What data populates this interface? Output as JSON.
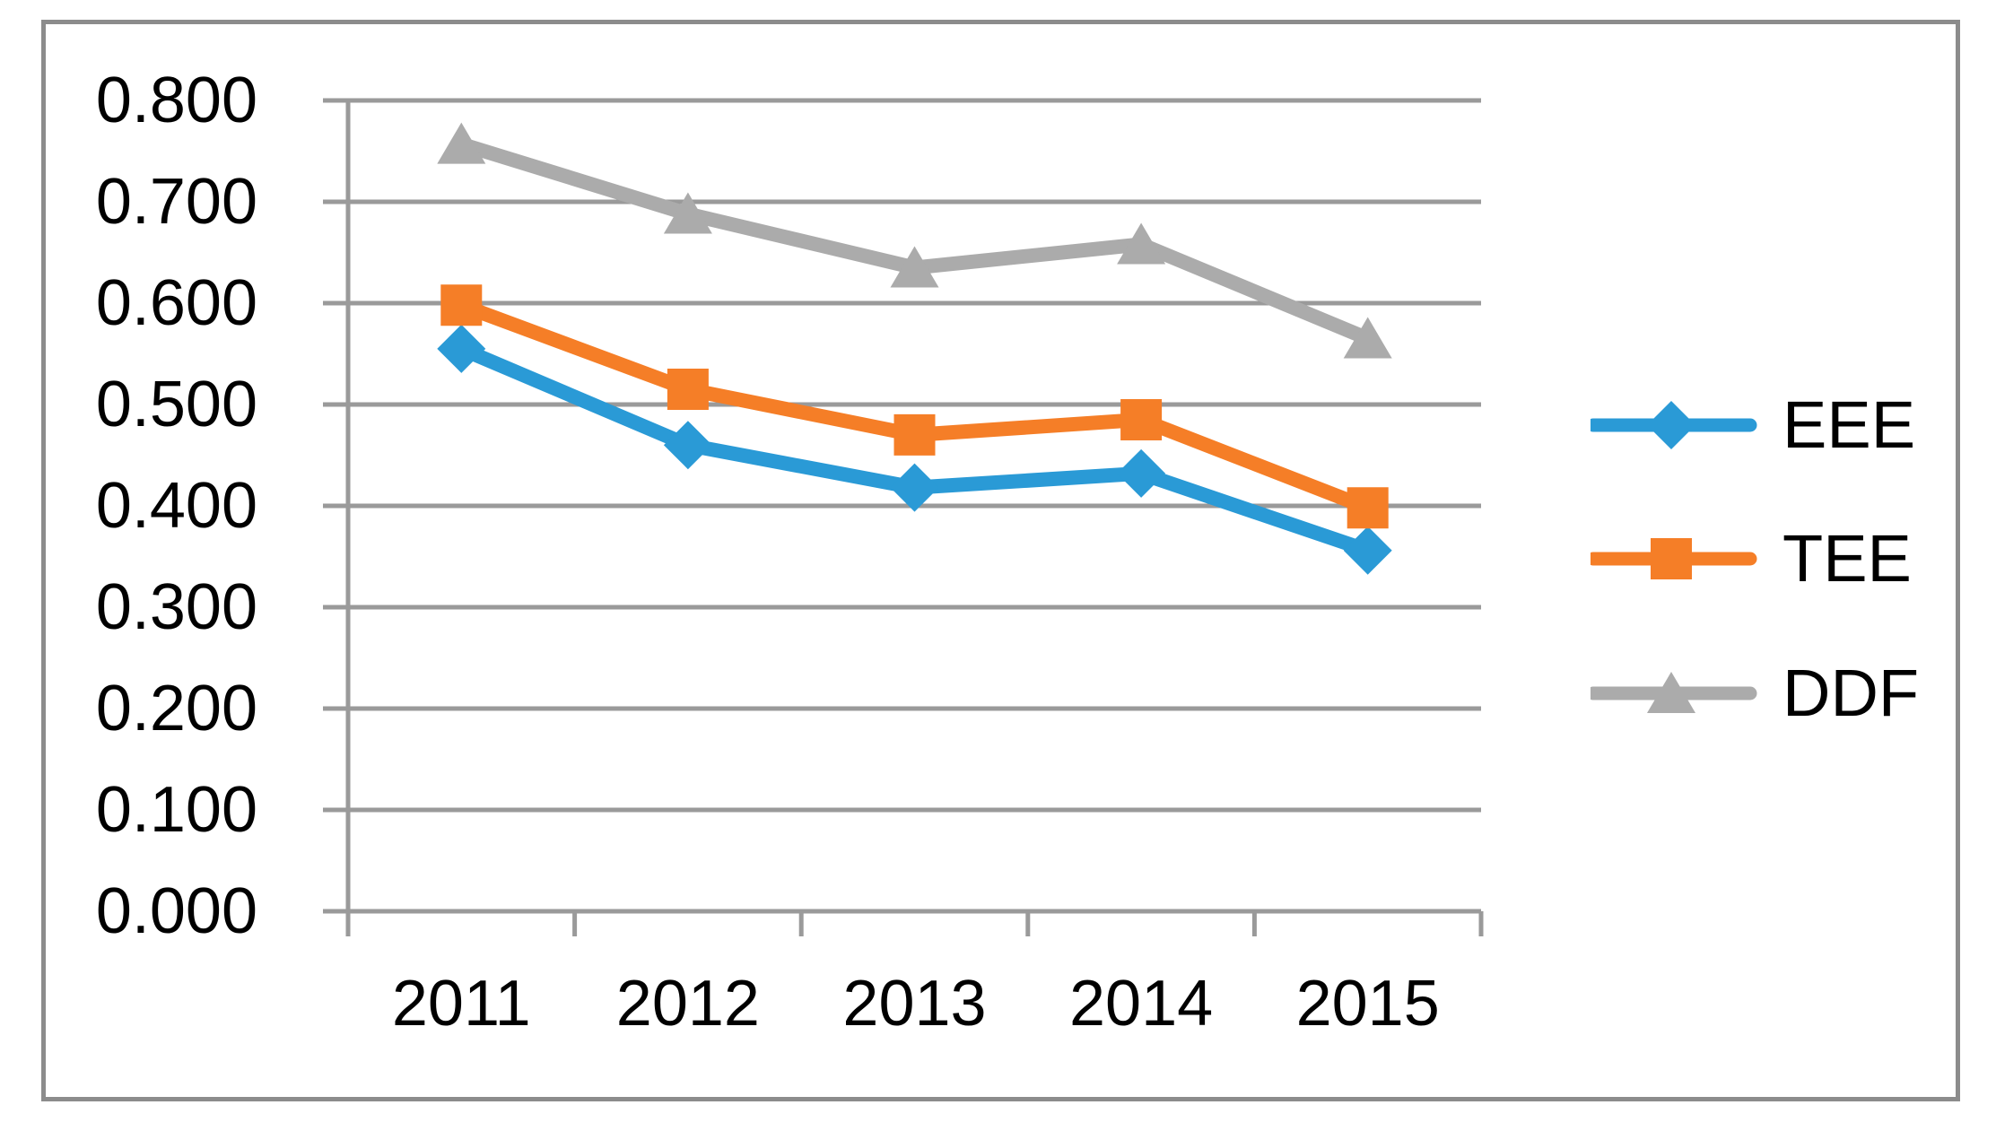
{
  "chart_data": {
    "type": "line",
    "title": "",
    "categories": [
      "2011",
      "2012",
      "2013",
      "2014",
      "2015"
    ],
    "series": [
      {
        "name": "EEE",
        "color": "#2A9AD6",
        "marker": "diamond",
        "values": [
          0.555,
          0.46,
          0.418,
          0.432,
          0.356
        ]
      },
      {
        "name": "TEE",
        "color": "#F57E27",
        "marker": "square",
        "values": [
          0.598,
          0.515,
          0.47,
          0.485,
          0.398
        ]
      },
      {
        "name": "DDF",
        "color": "#ABABAB",
        "marker": "triangle",
        "values": [
          0.757,
          0.688,
          0.635,
          0.658,
          0.565
        ]
      }
    ],
    "y_axis": {
      "min": 0.0,
      "max": 0.8,
      "step": 0.1,
      "tick_labels": [
        "0.000",
        "0.100",
        "0.200",
        "0.300",
        "0.400",
        "0.500",
        "0.600",
        "0.700",
        "0.800"
      ]
    },
    "x_axis": {
      "tick_labels": [
        "2011",
        "2012",
        "2013",
        "2014",
        "2015"
      ]
    },
    "legend": {
      "position": "right",
      "entries": [
        "EEE",
        "TEE",
        "DDF"
      ]
    },
    "grid": true,
    "grid_color": "#9A9A9A",
    "frame_color": "#8C8C8C"
  }
}
